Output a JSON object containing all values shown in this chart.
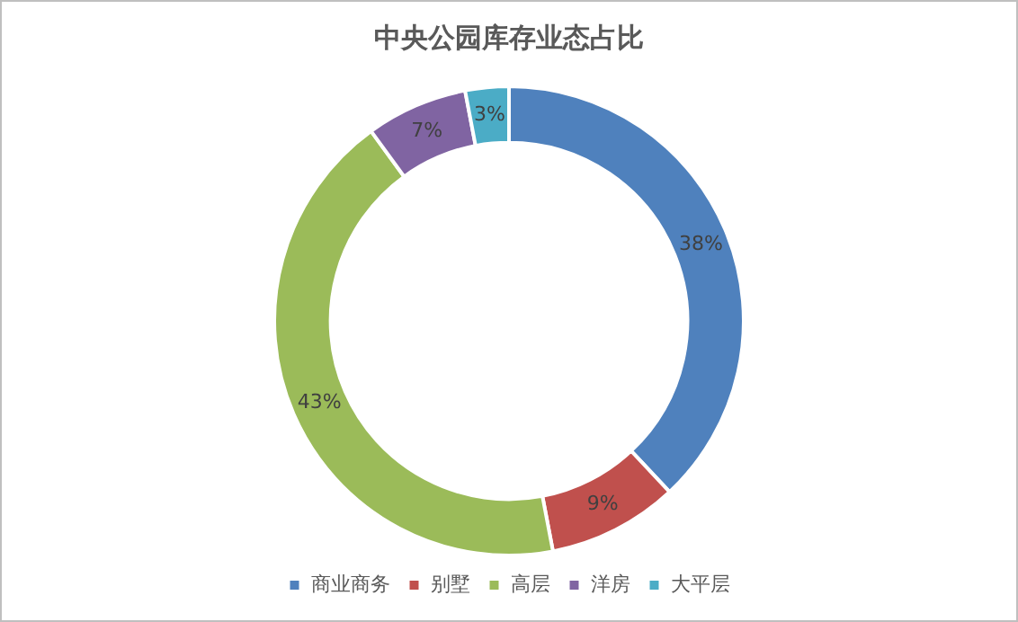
{
  "chart_data": {
    "type": "donut",
    "title": "中央公园库存业态占比",
    "categories": [
      "商业商务",
      "别墅",
      "高层",
      "洋房",
      "大平层"
    ],
    "values": [
      38,
      9,
      43,
      7,
      3
    ],
    "colors": [
      "#4f81bd",
      "#c0504d",
      "#9bbb59",
      "#8064a2",
      "#4bacc6"
    ],
    "value_labels": [
      "38%",
      "9%",
      "43%",
      "7%",
      "3%"
    ],
    "legend": "bottom"
  }
}
